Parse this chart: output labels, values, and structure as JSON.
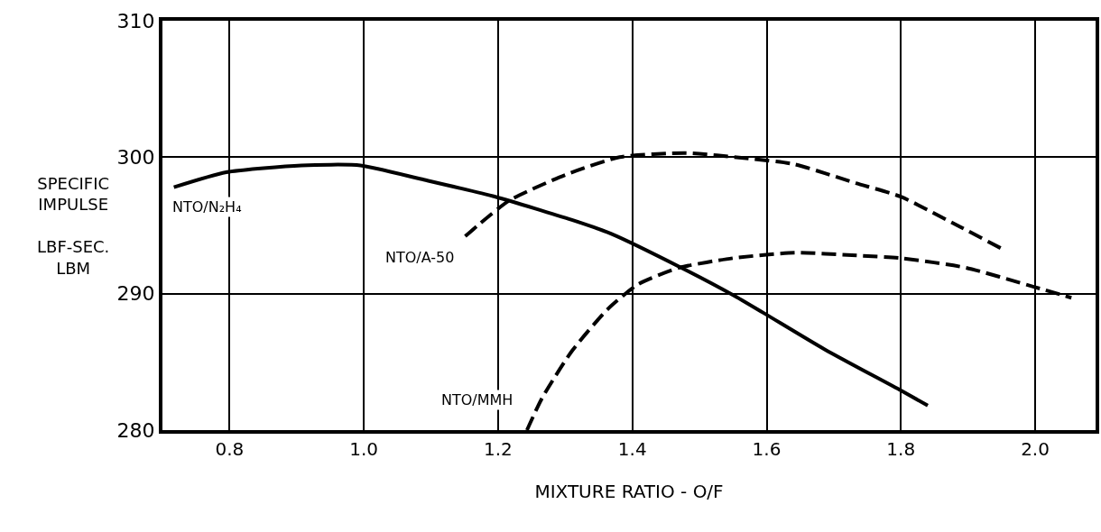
{
  "chart_data": {
    "type": "line",
    "xlabel": "MIXTURE RATIO - O/F",
    "ylabel": "SPECIFIC\nIMPULSE\n\nLBF-SEC.\nLBM",
    "xlim": [
      0.7,
      2.09
    ],
    "xticks": [
      {
        "value": 0.8,
        "label": "0.8"
      },
      {
        "value": 1.0,
        "label": "1.0"
      },
      {
        "value": 1.2,
        "label": "1.2"
      },
      {
        "value": 1.4,
        "label": "1.4"
      },
      {
        "value": 1.6,
        "label": "1.6"
      },
      {
        "value": 1.8,
        "label": "1.8"
      },
      {
        "value": 2.0,
        "label": "2.0"
      }
    ],
    "ylim": [
      280,
      310
    ],
    "yticks": [
      280,
      290,
      300,
      310
    ],
    "grid": true,
    "legend": false,
    "series": [
      {
        "name": "NTO/N₂H₄",
        "color": "#000000",
        "line_style": "solid",
        "x": [
          0.717,
          0.795,
          0.907,
          0.995,
          1.085,
          1.196,
          1.31,
          1.368,
          1.473,
          1.55,
          1.595,
          1.687,
          1.8,
          1.84
        ],
        "values": [
          297.8,
          298.9,
          299.4,
          299.4,
          298.4,
          297.1,
          295.4,
          294.4,
          291.9,
          289.9,
          288.6,
          285.9,
          282.9,
          281.8
        ]
      },
      {
        "name": "NTO/A-50",
        "color": "#000000",
        "line_style": "dashed",
        "x": [
          1.151,
          1.216,
          1.3,
          1.381,
          1.48,
          1.573,
          1.64,
          1.733,
          1.8,
          1.888,
          1.95
        ],
        "values": [
          294.2,
          296.8,
          298.7,
          300.0,
          300.3,
          299.9,
          299.5,
          298.1,
          297.1,
          294.9,
          293.3
        ]
      },
      {
        "name": "NTO/MMH",
        "color": "#000000",
        "line_style": "dashed",
        "x": [
          1.243,
          1.265,
          1.31,
          1.364,
          1.409,
          1.47,
          1.55,
          1.642,
          1.734,
          1.8,
          1.897,
          1.998,
          2.054
        ],
        "values": [
          280.0,
          282.3,
          285.8,
          288.9,
          290.7,
          291.9,
          292.6,
          293.0,
          292.8,
          292.6,
          291.9,
          290.5,
          289.7
        ]
      }
    ]
  }
}
